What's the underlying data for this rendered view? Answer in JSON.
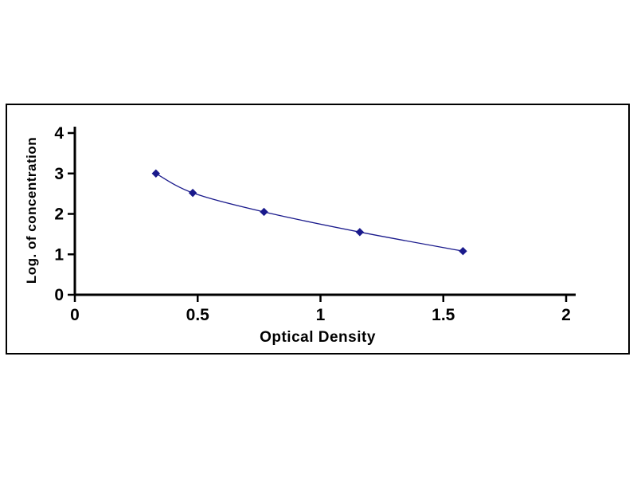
{
  "page": {
    "background_color": "#ffffff",
    "frame_border_color": "#000000"
  },
  "chart_data": {
    "type": "line",
    "title": "",
    "xlabel": "Optical Density",
    "ylabel": "Log. of concentration",
    "x": [
      0.33,
      0.48,
      0.77,
      1.16,
      1.58
    ],
    "y": [
      3.0,
      2.52,
      2.05,
      1.55,
      1.08
    ],
    "xlim": [
      0,
      2
    ],
    "ylim": [
      0,
      4
    ],
    "x_ticks": [
      0,
      0.5,
      1,
      1.5,
      2
    ],
    "x_tick_labels": [
      "0",
      "0.5",
      "1",
      "1.5",
      "2"
    ],
    "y_ticks": [
      0,
      1,
      2,
      3,
      4
    ],
    "y_tick_labels": [
      "0",
      "1",
      "2",
      "3",
      "4"
    ],
    "grid": false,
    "legend": null,
    "line_color": "#1a1a8c",
    "marker": "diamond",
    "marker_color": "#1a1a8c",
    "axis_color": "#000000",
    "tick_font_size": 21,
    "tick_font_weight": "bold"
  }
}
